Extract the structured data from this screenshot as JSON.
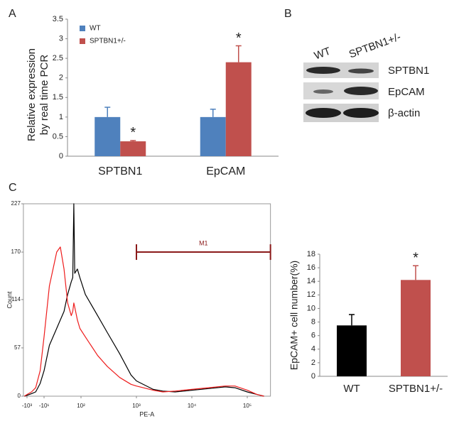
{
  "chart_data": [
    {
      "type": "bar",
      "panel": "A",
      "y_label": [
        "Relative expression",
        "by real time PCR"
      ],
      "categories": [
        "SPTBN1",
        "EpCAM"
      ],
      "series": [
        {
          "name": "WT",
          "color": "#4f81bd",
          "values": [
            1.0,
            1.0
          ],
          "errors": [
            0.25,
            0.2
          ],
          "annotations": [
            null,
            null
          ]
        },
        {
          "name": "SPTBN1+/-",
          "color": "#c0504d",
          "values": [
            0.38,
            2.4
          ],
          "errors": [
            0.02,
            0.42
          ],
          "annotations": [
            "*",
            "*"
          ]
        }
      ],
      "ylim": [
        0,
        3.5
      ],
      "yticks": [
        0,
        0.5,
        1,
        1.5,
        2,
        2.5,
        3,
        3.5
      ]
    },
    {
      "type": "line",
      "panel": "C",
      "x_label": "PE-A",
      "y_label": "Count",
      "x_scale": "biexponential",
      "x": [
        -2000,
        -1000,
        -300,
        -100,
        -30,
        -10,
        -3,
        0,
        1,
        3,
        7,
        15,
        20,
        25,
        30,
        50,
        80,
        120,
        200,
        300,
        500,
        800,
        1000,
        2000,
        3000,
        5000,
        10000,
        20000,
        40000,
        60000,
        100000,
        150000,
        200000
      ],
      "series": [
        {
          "name": "WT",
          "color": "#000000",
          "values": [
            0,
            1,
            3,
            5,
            15,
            30,
            60,
            80,
            90,
            100,
            120,
            135,
            140,
            227,
            145,
            150,
            140,
            120,
            95,
            75,
            50,
            25,
            18,
            8,
            6,
            5,
            7,
            9,
            11,
            10,
            5,
            2,
            0
          ]
        },
        {
          "name": "SPTBN1+/-",
          "color": "#ee1c1c",
          "values": [
            0,
            2,
            5,
            10,
            30,
            70,
            130,
            170,
            176,
            150,
            110,
            95,
            100,
            110,
            105,
            90,
            80,
            70,
            48,
            35,
            22,
            14,
            12,
            7,
            5,
            6,
            8,
            10,
            12,
            12,
            7,
            2,
            0
          ]
        }
      ],
      "gate": {
        "label": "M1",
        "x": [
          1000,
          262144
        ],
        "y": 170,
        "color": "#8b1a1a"
      },
      "xlim": [
        -2600,
        262144
      ],
      "xticks": [
        {
          "value": -1000,
          "label": "-10³"
        },
        {
          "value": -10,
          "label": "-10¹"
        },
        {
          "value": 100,
          "label": "10²"
        },
        {
          "value": 1000,
          "label": "10³"
        },
        {
          "value": 10000,
          "label": "10⁴"
        },
        {
          "value": 100000,
          "label": "10⁵"
        }
      ],
      "ylim": [
        0,
        227
      ],
      "yticks": [
        0,
        57,
        114,
        170,
        227
      ]
    },
    {
      "type": "bar",
      "y_label": "EpCAM+ cell number(%)",
      "categories": [
        "WT",
        "SPTBN1+/-"
      ],
      "series": [
        {
          "colors": [
            "#000000",
            "#c0504d"
          ],
          "values": [
            7.5,
            14.2
          ],
          "errors": [
            1.6,
            2.1
          ],
          "annotations": [
            null,
            "*"
          ]
        }
      ],
      "ylim": [
        0,
        18
      ],
      "yticks": [
        0,
        2,
        4,
        6,
        8,
        10,
        12,
        14,
        16,
        18
      ]
    }
  ],
  "blot": {
    "panel": "B",
    "columns": [
      "WT",
      "SPTBN1+/-"
    ],
    "rows": [
      "SPTBN1",
      "EpCAM",
      "β-actin"
    ]
  }
}
